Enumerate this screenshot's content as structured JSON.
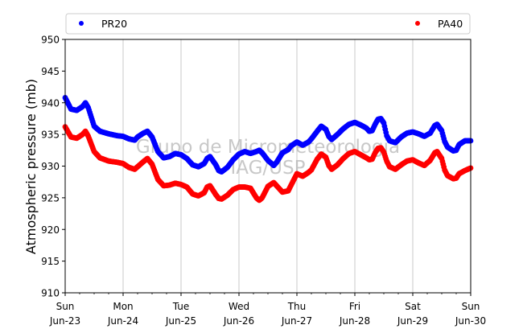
{
  "chart_data": {
    "type": "scatter",
    "ylabel": "Atmospheric pressure (mb)",
    "xlabel": "",
    "xlim": [
      "2024-06-23 00:00",
      "2024-06-30 00:00"
    ],
    "ylim": [
      910,
      950
    ],
    "yticks": [
      910,
      915,
      920,
      925,
      930,
      935,
      940,
      945,
      950
    ],
    "xticks": [
      {
        "day": 0,
        "line1": "Sun",
        "line2": "Jun-23"
      },
      {
        "day": 1,
        "line1": "Mon",
        "line2": "Jun-24"
      },
      {
        "day": 2,
        "line1": "Tue",
        "line2": "Jun-25"
      },
      {
        "day": 3,
        "line1": "Wed",
        "line2": "Jun-26"
      },
      {
        "day": 4,
        "line1": "Thu",
        "line2": "Jun-27"
      },
      {
        "day": 5,
        "line1": "Fri",
        "line2": "Jun-28"
      },
      {
        "day": 6,
        "line1": "Sat",
        "line2": "Jun-29"
      },
      {
        "day": 7,
        "line1": "Sun",
        "line2": "Jun-30"
      }
    ],
    "grid": "vertical",
    "legend_position": "top",
    "watermark": [
      "Grupo de Micrometeorologia",
      "IAG/USP"
    ],
    "series": [
      {
        "name": "PR20",
        "color": "#0000ff",
        "points": [
          [
            0.0,
            940.8
          ],
          [
            0.1,
            939.0
          ],
          [
            0.2,
            938.8
          ],
          [
            0.3,
            939.4
          ],
          [
            0.35,
            940.0
          ],
          [
            0.4,
            939.2
          ],
          [
            0.5,
            936.3
          ],
          [
            0.6,
            935.5
          ],
          [
            0.75,
            935.1
          ],
          [
            0.9,
            934.8
          ],
          [
            1.0,
            934.7
          ],
          [
            1.1,
            934.3
          ],
          [
            1.2,
            934.1
          ],
          [
            1.25,
            934.6
          ],
          [
            1.35,
            935.2
          ],
          [
            1.42,
            935.5
          ],
          [
            1.5,
            934.6
          ],
          [
            1.6,
            932.3
          ],
          [
            1.7,
            931.3
          ],
          [
            1.8,
            931.5
          ],
          [
            1.9,
            932.0
          ],
          [
            2.0,
            931.8
          ],
          [
            2.1,
            931.2
          ],
          [
            2.2,
            930.2
          ],
          [
            2.3,
            929.9
          ],
          [
            2.4,
            930.4
          ],
          [
            2.45,
            931.2
          ],
          [
            2.5,
            931.5
          ],
          [
            2.6,
            930.2
          ],
          [
            2.65,
            929.3
          ],
          [
            2.7,
            929.1
          ],
          [
            2.8,
            929.8
          ],
          [
            2.9,
            931.0
          ],
          [
            3.0,
            931.9
          ],
          [
            3.1,
            932.3
          ],
          [
            3.2,
            932.0
          ],
          [
            3.3,
            932.3
          ],
          [
            3.35,
            932.5
          ],
          [
            3.4,
            932.1
          ],
          [
            3.5,
            930.9
          ],
          [
            3.6,
            930.1
          ],
          [
            3.65,
            930.6
          ],
          [
            3.75,
            932.1
          ],
          [
            3.85,
            932.6
          ],
          [
            3.9,
            933.2
          ],
          [
            4.0,
            933.8
          ],
          [
            4.1,
            933.3
          ],
          [
            4.2,
            933.8
          ],
          [
            4.25,
            934.3
          ],
          [
            4.35,
            935.5
          ],
          [
            4.42,
            936.3
          ],
          [
            4.5,
            935.8
          ],
          [
            4.55,
            934.7
          ],
          [
            4.6,
            934.2
          ],
          [
            4.7,
            935.0
          ],
          [
            4.8,
            935.9
          ],
          [
            4.9,
            936.6
          ],
          [
            5.0,
            936.9
          ],
          [
            5.1,
            936.5
          ],
          [
            5.2,
            936.0
          ],
          [
            5.25,
            935.5
          ],
          [
            5.3,
            935.6
          ],
          [
            5.35,
            936.6
          ],
          [
            5.4,
            937.4
          ],
          [
            5.45,
            937.5
          ],
          [
            5.5,
            936.8
          ],
          [
            5.55,
            934.8
          ],
          [
            5.6,
            934.0
          ],
          [
            5.7,
            933.7
          ],
          [
            5.8,
            934.6
          ],
          [
            5.9,
            935.2
          ],
          [
            6.0,
            935.4
          ],
          [
            6.1,
            935.1
          ],
          [
            6.2,
            934.7
          ],
          [
            6.3,
            935.2
          ],
          [
            6.38,
            936.4
          ],
          [
            6.42,
            936.6
          ],
          [
            6.5,
            935.6
          ],
          [
            6.55,
            933.9
          ],
          [
            6.6,
            933.0
          ],
          [
            6.7,
            932.4
          ],
          [
            6.75,
            932.5
          ],
          [
            6.8,
            933.4
          ],
          [
            6.9,
            934.0
          ],
          [
            7.0,
            934.0
          ]
        ]
      },
      {
        "name": "PA40",
        "color": "#ff0000",
        "points": [
          [
            0.0,
            936.2
          ],
          [
            0.1,
            934.6
          ],
          [
            0.2,
            934.4
          ],
          [
            0.3,
            935.0
          ],
          [
            0.35,
            935.5
          ],
          [
            0.4,
            934.7
          ],
          [
            0.5,
            932.3
          ],
          [
            0.6,
            931.3
          ],
          [
            0.75,
            930.8
          ],
          [
            0.9,
            930.6
          ],
          [
            1.0,
            930.4
          ],
          [
            1.1,
            929.8
          ],
          [
            1.2,
            929.5
          ],
          [
            1.25,
            929.9
          ],
          [
            1.35,
            930.7
          ],
          [
            1.42,
            931.2
          ],
          [
            1.5,
            930.3
          ],
          [
            1.6,
            927.9
          ],
          [
            1.7,
            926.9
          ],
          [
            1.8,
            927.0
          ],
          [
            1.9,
            927.3
          ],
          [
            2.0,
            927.1
          ],
          [
            2.1,
            926.7
          ],
          [
            2.2,
            925.6
          ],
          [
            2.3,
            925.3
          ],
          [
            2.4,
            925.8
          ],
          [
            2.45,
            926.7
          ],
          [
            2.5,
            926.9
          ],
          [
            2.6,
            925.5
          ],
          [
            2.65,
            924.9
          ],
          [
            2.7,
            924.8
          ],
          [
            2.8,
            925.4
          ],
          [
            2.9,
            926.3
          ],
          [
            3.0,
            926.7
          ],
          [
            3.1,
            926.7
          ],
          [
            3.2,
            926.5
          ],
          [
            3.3,
            925.0
          ],
          [
            3.35,
            924.6
          ],
          [
            3.4,
            925.0
          ],
          [
            3.5,
            926.8
          ],
          [
            3.6,
            927.4
          ],
          [
            3.65,
            926.9
          ],
          [
            3.75,
            925.9
          ],
          [
            3.85,
            926.1
          ],
          [
            3.9,
            927.0
          ],
          [
            4.0,
            928.8
          ],
          [
            4.1,
            928.4
          ],
          [
            4.2,
            929.0
          ],
          [
            4.25,
            929.4
          ],
          [
            4.35,
            931.1
          ],
          [
            4.42,
            931.9
          ],
          [
            4.5,
            931.4
          ],
          [
            4.55,
            930.1
          ],
          [
            4.6,
            929.5
          ],
          [
            4.7,
            930.2
          ],
          [
            4.8,
            931.2
          ],
          [
            4.9,
            932.0
          ],
          [
            5.0,
            932.3
          ],
          [
            5.1,
            931.8
          ],
          [
            5.2,
            931.3
          ],
          [
            5.25,
            931.0
          ],
          [
            5.3,
            931.1
          ],
          [
            5.35,
            932.1
          ],
          [
            5.4,
            932.8
          ],
          [
            5.45,
            932.9
          ],
          [
            5.5,
            932.2
          ],
          [
            5.55,
            930.8
          ],
          [
            5.6,
            929.9
          ],
          [
            5.7,
            929.5
          ],
          [
            5.8,
            930.2
          ],
          [
            5.9,
            930.8
          ],
          [
            6.0,
            931.0
          ],
          [
            6.1,
            930.5
          ],
          [
            6.2,
            930.1
          ],
          [
            6.3,
            930.9
          ],
          [
            6.38,
            932.1
          ],
          [
            6.42,
            932.3
          ],
          [
            6.5,
            931.2
          ],
          [
            6.55,
            929.4
          ],
          [
            6.6,
            928.5
          ],
          [
            6.7,
            928.0
          ],
          [
            6.75,
            928.1
          ],
          [
            6.8,
            928.8
          ],
          [
            6.9,
            929.3
          ],
          [
            7.0,
            929.7
          ]
        ]
      }
    ]
  }
}
